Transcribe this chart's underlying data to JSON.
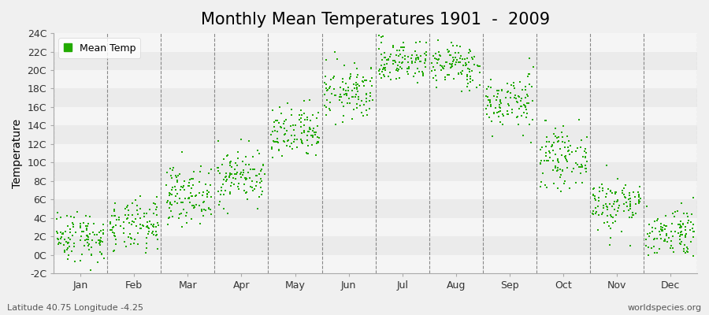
{
  "title": "Monthly Mean Temperatures 1901  -  2009",
  "ylabel": "Temperature",
  "subtitle_left": "Latitude 40.75 Longitude -4.25",
  "subtitle_right": "worldspecies.org",
  "dot_color": "#22aa00",
  "plot_bg_color": "#f0f0f0",
  "fig_bg_color": "#f0f0f0",
  "band_light": "#ebebeb",
  "band_lighter": "#f5f5f5",
  "grid_line_color": "#ffffff",
  "vline_color": "#888888",
  "ylim": [
    -2,
    24
  ],
  "yticks": [
    -2,
    0,
    2,
    4,
    6,
    8,
    10,
    12,
    14,
    16,
    18,
    20,
    22,
    24
  ],
  "ytick_labels": [
    "-2C",
    "0C",
    "2C",
    "4C",
    "6C",
    "8C",
    "10C",
    "12C",
    "14C",
    "16C",
    "18C",
    "20C",
    "22C",
    "24C"
  ],
  "months": [
    "Jan",
    "Feb",
    "Mar",
    "Apr",
    "May",
    "Jun",
    "Jul",
    "Aug",
    "Sep",
    "Oct",
    "Nov",
    "Dec"
  ],
  "month_means": [
    2.0,
    3.0,
    6.5,
    8.5,
    13.0,
    17.5,
    21.0,
    20.5,
    16.5,
    10.5,
    5.5,
    2.5
  ],
  "month_stds": [
    1.4,
    1.4,
    1.5,
    1.5,
    1.5,
    1.5,
    1.2,
    1.2,
    1.5,
    1.5,
    1.5,
    1.4
  ],
  "n_years": 109,
  "random_seed": 42,
  "legend_label": "Mean Temp",
  "title_fontsize": 15,
  "axis_fontsize": 10,
  "tick_fontsize": 9,
  "subtitle_fontsize": 8
}
